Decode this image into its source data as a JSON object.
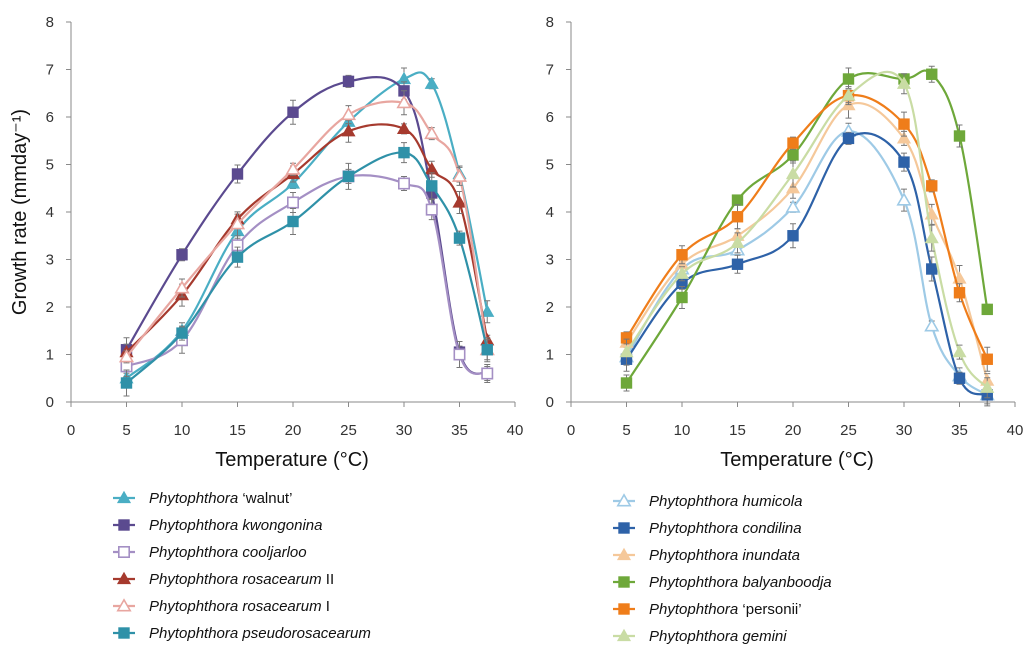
{
  "chart_data": [
    {
      "type": "line",
      "title": "",
      "xlabel": "Temperature (°C)",
      "ylabel": "Growth rate (mmday⁻¹)",
      "xlim": [
        0,
        40
      ],
      "ylim": [
        0,
        8
      ],
      "xticks": [
        0,
        5,
        10,
        15,
        20,
        25,
        30,
        35,
        40
      ],
      "yticks": [
        0,
        1,
        2,
        3,
        4,
        5,
        6,
        7,
        8
      ],
      "grid": false,
      "legend_position": "bottom",
      "x": [
        5,
        10,
        15,
        20,
        25,
        30,
        32.5,
        35,
        37.5
      ],
      "series": [
        {
          "genus": "Phytophthora",
          "epithet": "‘walnut’",
          "italic": false,
          "marker": "triangle",
          "color": "#4aaec4",
          "values": [
            0.5,
            1.5,
            3.6,
            4.6,
            5.9,
            6.8,
            6.7,
            4.8,
            1.9
          ]
        },
        {
          "genus": "Phytophthora",
          "epithet": "kwongonina",
          "italic": true,
          "marker": "square",
          "color": "#5b4a8f",
          "values": [
            1.1,
            3.1,
            4.8,
            6.1,
            6.75,
            6.55,
            4.4,
            1.05,
            0.6
          ]
        },
        {
          "genus": "Phytophthora",
          "epithet": "cooljarloo",
          "italic": true,
          "marker": "square-open",
          "color": "#a48fc4",
          "values": [
            0.75,
            1.3,
            3.3,
            4.2,
            4.75,
            4.6,
            4.05,
            1.0,
            0.6
          ]
        },
        {
          "genus": "Phytophthora",
          "epithet": "rosacearum II",
          "italic": true,
          "italic_part": "rosacearum",
          "plain_part": " II",
          "marker": "triangle",
          "color": "#a63a2e",
          "values": [
            1.05,
            2.25,
            3.85,
            4.8,
            5.7,
            5.75,
            4.9,
            4.2,
            1.3
          ]
        },
        {
          "genus": "Phytophthora",
          "epithet": "rosacearum I",
          "italic": true,
          "italic_part": "rosacearum",
          "plain_part": " I",
          "marker": "triangle-open",
          "color": "#e8a6a0",
          "values": [
            0.95,
            2.4,
            3.75,
            4.9,
            6.05,
            6.3,
            5.65,
            4.75,
            1.1
          ]
        },
        {
          "genus": "Phytophthora",
          "epithet": "pseudorosacearum",
          "italic": true,
          "marker": "square",
          "color": "#2f91a8",
          "values": [
            0.4,
            1.45,
            3.05,
            3.8,
            4.75,
            5.25,
            4.55,
            3.45,
            1.1
          ]
        }
      ]
    },
    {
      "type": "line",
      "title": "",
      "xlabel": "Temperature (°C)",
      "ylabel": "",
      "xlim": [
        0,
        40
      ],
      "ylim": [
        0,
        8
      ],
      "xticks": [
        0,
        5,
        10,
        15,
        20,
        25,
        30,
        35,
        40
      ],
      "yticks": [
        0,
        1,
        2,
        3,
        4,
        5,
        6,
        7,
        8
      ],
      "grid": false,
      "legend_position": "bottom",
      "x": [
        5,
        10,
        15,
        20,
        25,
        30,
        32.5,
        35,
        37.5
      ],
      "series": [
        {
          "genus": "Phytophthora",
          "epithet": "humicola",
          "italic": true,
          "marker": "triangle-open",
          "color": "#9ecae6",
          "values": [
            0.95,
            2.8,
            3.2,
            4.1,
            5.7,
            4.25,
            1.6,
            0.55,
            0.15
          ]
        },
        {
          "genus": "Phytophthora",
          "epithet": "condilina",
          "italic": true,
          "marker": "square",
          "color": "#2e62a8",
          "values": [
            0.9,
            2.5,
            2.9,
            3.5,
            5.55,
            5.05,
            2.8,
            0.5,
            0.15
          ]
        },
        {
          "genus": "Phytophthora",
          "epithet": "inundata",
          "italic": true,
          "marker": "triangle",
          "color": "#f5c89a",
          "values": [
            1.25,
            2.9,
            3.5,
            4.5,
            6.25,
            5.55,
            3.95,
            2.6,
            0.45
          ]
        },
        {
          "genus": "Phytophthora",
          "epithet": "balyanboodja",
          "italic": true,
          "marker": "square",
          "color": "#6ea83a",
          "values": [
            0.4,
            2.2,
            4.25,
            5.2,
            6.8,
            6.8,
            6.9,
            5.6,
            1.95
          ]
        },
        {
          "genus": "Phytophthora",
          "epithet": "‘personii’",
          "italic": false,
          "marker": "square",
          "color": "#ef7d1a",
          "values": [
            1.35,
            3.1,
            3.9,
            5.45,
            6.45,
            5.85,
            4.55,
            2.3,
            0.9
          ]
        },
        {
          "genus": "Phytophthora",
          "epithet": "gemini",
          "italic": true,
          "marker": "triangle",
          "color": "#c9dca4",
          "values": [
            1.05,
            2.7,
            3.35,
            4.8,
            6.45,
            6.7,
            3.45,
            1.05,
            0.3
          ]
        }
      ]
    }
  ]
}
